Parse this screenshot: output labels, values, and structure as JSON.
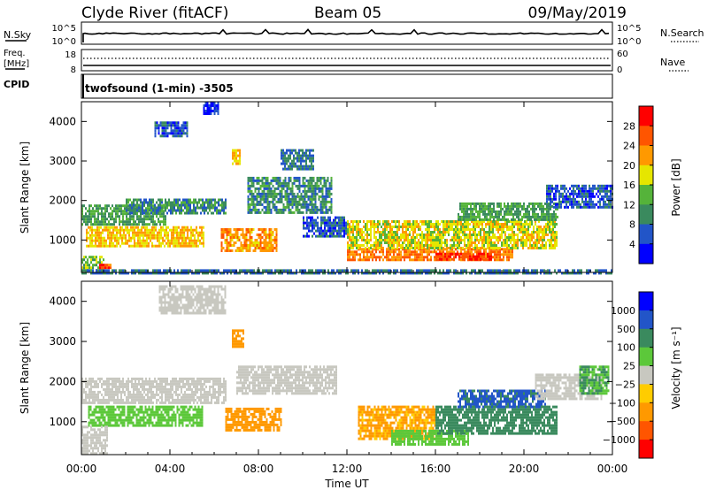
{
  "header": {
    "station": "Clyde River (fitACF)",
    "beam": "Beam 05",
    "date": "09/May/2019"
  },
  "top_panels": {
    "nsky_label": "N.Sky",
    "nsearch_label": "N.Search",
    "nsky_ticks": [
      "10^5",
      "10^0"
    ],
    "nsearch_ticks": [
      "10^5",
      "10^0"
    ],
    "freq_label": "Freq.",
    "freq_unit": "[MHz]",
    "freq_ticks": [
      "18",
      "8"
    ],
    "nave_label": "Nave",
    "nave_ticks": [
      "60",
      "0"
    ],
    "cpid_label": "CPID",
    "cpid_text": "twofsound (1-min) -3505"
  },
  "chart_data": [
    {
      "type": "heatmap",
      "name": "power",
      "xlabel": "Time UT",
      "ylabel": "Slant Range [km]",
      "x_ticks": [
        "00:00",
        "04:00",
        "08:00",
        "12:00",
        "16:00",
        "20:00",
        "00:00"
      ],
      "y_ticks": [
        "1000",
        "2000",
        "3000",
        "4000"
      ],
      "xlim": [
        0,
        24
      ],
      "ylim": [
        180,
        4500
      ],
      "colorbar_label": "Power [dB]",
      "colorbar_ticks": [
        "28",
        "24",
        "20",
        "16",
        "12",
        "8",
        "4"
      ],
      "colorbar_colors": [
        "#0000ff",
        "#2255c8",
        "#3a8a5e",
        "#55b33a",
        "#e6e600",
        "#ff9900",
        "#ff5500",
        "#ff0000"
      ],
      "clusters": [
        {
          "t0": 0.0,
          "t1": 3.8,
          "r0": 1400,
          "r1": 1900,
          "level": 12
        },
        {
          "t0": 2.0,
          "t1": 6.5,
          "r0": 1700,
          "r1": 2050,
          "level": 10
        },
        {
          "t0": 0.2,
          "t1": 5.5,
          "r0": 850,
          "r1": 1350,
          "level": 20
        },
        {
          "t0": 0.0,
          "t1": 1.0,
          "r0": 200,
          "r1": 600,
          "level": 14
        },
        {
          "t0": 0.8,
          "t1": 1.3,
          "r0": 200,
          "r1": 400,
          "level": 26
        },
        {
          "t0": 6.3,
          "t1": 8.8,
          "r0": 750,
          "r1": 1300,
          "level": 22
        },
        {
          "t0": 7.5,
          "t1": 11.3,
          "r0": 1700,
          "r1": 2600,
          "level": 10
        },
        {
          "t0": 6.8,
          "t1": 7.2,
          "r0": 2900,
          "r1": 3300,
          "level": 20
        },
        {
          "t0": 3.3,
          "t1": 4.8,
          "r0": 3600,
          "r1": 4000,
          "level": 6
        },
        {
          "t0": 5.5,
          "t1": 6.2,
          "r0": 4200,
          "r1": 4500,
          "level": 4
        },
        {
          "t0": 9.0,
          "t1": 10.5,
          "r0": 2800,
          "r1": 3300,
          "level": 8
        },
        {
          "t0": 12.0,
          "t1": 19.5,
          "r0": 500,
          "r1": 800,
          "level": 24
        },
        {
          "t0": 12.0,
          "t1": 21.5,
          "r0": 800,
          "r1": 1500,
          "level": 18
        },
        {
          "t0": 17.0,
          "t1": 21.5,
          "r0": 1500,
          "r1": 1950,
          "level": 12
        },
        {
          "t0": 16.0,
          "t1": 18.5,
          "r0": 480,
          "r1": 680,
          "level": 28
        },
        {
          "t0": 21.0,
          "t1": 24.0,
          "r0": 1800,
          "r1": 2400,
          "level": 6
        },
        {
          "t0": 10.0,
          "t1": 12.0,
          "r0": 1100,
          "r1": 1600,
          "level": 6
        },
        {
          "t0": 0.0,
          "t1": 24.0,
          "r0": 180,
          "r1": 260,
          "level": 8
        }
      ]
    },
    {
      "type": "heatmap",
      "name": "velocity",
      "xlabel": "Time UT",
      "ylabel": "Slant Range [km]",
      "x_ticks": [
        "00:00",
        "04:00",
        "08:00",
        "12:00",
        "16:00",
        "20:00",
        "00:00"
      ],
      "y_ticks": [
        "1000",
        "2000",
        "3000",
        "4000"
      ],
      "xlim": [
        0,
        24
      ],
      "ylim": [
        180,
        4500
      ],
      "colorbar_label": "Velocity [m s⁻¹]",
      "colorbar_ticks": [
        "1000",
        "500",
        "100",
        "25",
        "−25",
        "−100",
        "−500",
        "−1000"
      ],
      "colorbar_colors": [
        "#ff0000",
        "#ff5500",
        "#ff9900",
        "#ffcc00",
        "#c8c8c0",
        "#5cc83a",
        "#3a8a5e",
        "#2255c8",
        "#0000ff"
      ],
      "clusters": [
        {
          "t0": 0.0,
          "t1": 6.5,
          "r0": 1500,
          "r1": 2100,
          "level": 0
        },
        {
          "t0": 0.3,
          "t1": 5.5,
          "r0": 900,
          "r1": 1400,
          "level": 60
        },
        {
          "t0": 0.0,
          "t1": 1.2,
          "r0": 200,
          "r1": 900,
          "level": 0
        },
        {
          "t0": 6.5,
          "t1": 9.0,
          "r0": 800,
          "r1": 1350,
          "level": -150
        },
        {
          "t0": 7.0,
          "t1": 11.5,
          "r0": 1700,
          "r1": 2400,
          "level": 0
        },
        {
          "t0": 6.8,
          "t1": 7.3,
          "r0": 2900,
          "r1": 3300,
          "level": -150
        },
        {
          "t0": 3.5,
          "t1": 6.5,
          "r0": 3700,
          "r1": 4400,
          "level": 0
        },
        {
          "t0": 12.5,
          "t1": 16.0,
          "r0": 550,
          "r1": 1400,
          "level": -120
        },
        {
          "t0": 14.0,
          "t1": 17.5,
          "r0": 450,
          "r1": 800,
          "level": 60
        },
        {
          "t0": 16.0,
          "t1": 21.5,
          "r0": 700,
          "r1": 1400,
          "level": 300
        },
        {
          "t0": 17.0,
          "t1": 21.0,
          "r0": 1400,
          "r1": 1800,
          "level": 600
        },
        {
          "t0": 20.5,
          "t1": 23.5,
          "r0": 1600,
          "r1": 2200,
          "level": 0
        },
        {
          "t0": 22.5,
          "t1": 23.8,
          "r0": 1700,
          "r1": 2400,
          "level": 100
        }
      ]
    }
  ]
}
